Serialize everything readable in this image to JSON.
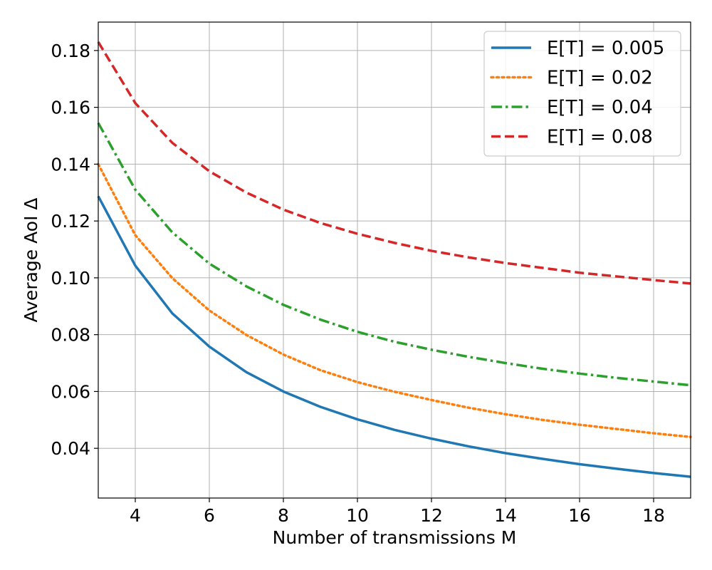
{
  "chart_data": {
    "type": "line",
    "xlabel": "Number of transmissions M",
    "ylabel": "Average AoI Δ",
    "xlim": [
      3,
      19
    ],
    "ylim": [
      0.0225,
      0.19
    ],
    "x_ticks": [
      4,
      6,
      8,
      10,
      12,
      14,
      16,
      18
    ],
    "x_tick_labels": [
      "4",
      "6",
      "8",
      "10",
      "12",
      "14",
      "16",
      "18"
    ],
    "y_ticks": [
      0.04,
      0.06,
      0.08,
      0.1,
      0.12,
      0.14,
      0.16,
      0.18
    ],
    "y_tick_labels": [
      "0.04",
      "0.06",
      "0.08",
      "0.10",
      "0.12",
      "0.14",
      "0.16",
      "0.18"
    ],
    "grid": true,
    "legend_position": "top-right",
    "x": [
      3,
      4,
      5,
      6,
      7,
      8,
      9,
      10,
      11,
      12,
      13,
      14,
      15,
      16,
      17,
      18,
      19
    ],
    "series": [
      {
        "name": "E[T] = 0.005",
        "color": "#1f77b4",
        "style": "solid",
        "values": [
          0.1287,
          0.1043,
          0.0875,
          0.0758,
          0.0668,
          0.06,
          0.0546,
          0.0502,
          0.0465,
          0.0434,
          0.0407,
          0.0383,
          0.0363,
          0.0344,
          0.0328,
          0.0313,
          0.03
        ]
      },
      {
        "name": "E[T] = 0.02",
        "color": "#ff7f0e",
        "style": "dotted",
        "values": [
          0.14,
          0.115,
          0.0999,
          0.0885,
          0.0799,
          0.073,
          0.0675,
          0.0633,
          0.0599,
          0.057,
          0.0543,
          0.052,
          0.05,
          0.0483,
          0.0468,
          0.0453,
          0.044
        ]
      },
      {
        "name": "E[T] = 0.04",
        "color": "#2ca02c",
        "style": "dashdot",
        "values": [
          0.1545,
          0.131,
          0.116,
          0.105,
          0.097,
          0.0905,
          0.0853,
          0.081,
          0.0775,
          0.0747,
          0.0722,
          0.07,
          0.068,
          0.0663,
          0.0648,
          0.0635,
          0.0622
        ]
      },
      {
        "name": "E[T] = 0.08",
        "color": "#d62728",
        "style": "dashed",
        "values": [
          0.183,
          0.1615,
          0.1475,
          0.1375,
          0.13,
          0.124,
          0.1193,
          0.1155,
          0.1123,
          0.1095,
          0.1072,
          0.1052,
          0.1035,
          0.1018,
          0.1005,
          0.0992,
          0.098
        ]
      }
    ]
  }
}
